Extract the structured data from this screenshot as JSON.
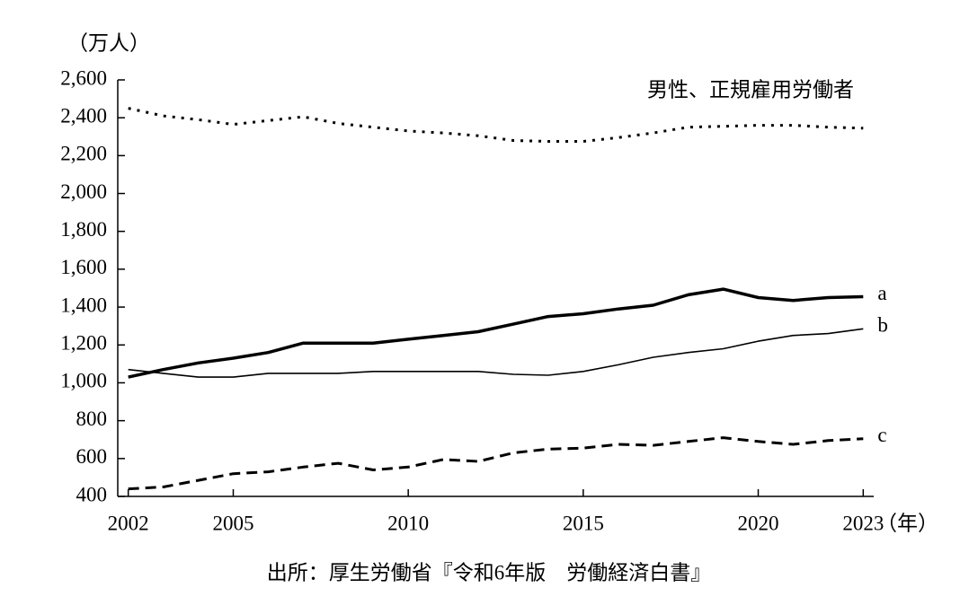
{
  "chart_data": {
    "type": "line",
    "y_unit": "（万人）",
    "x_unit": "（年）",
    "source": "出所：厚生労働省『令和6年版　労働経済白書』",
    "x": [
      2002,
      2003,
      2004,
      2005,
      2006,
      2007,
      2008,
      2009,
      2010,
      2011,
      2012,
      2013,
      2014,
      2015,
      2016,
      2017,
      2018,
      2019,
      2020,
      2021,
      2022,
      2023
    ],
    "series": [
      {
        "name": "男性、正規雇用労働者",
        "color": "#000000",
        "style": "dotted",
        "width": 3,
        "values": [
          2450,
          2410,
          2390,
          2365,
          2385,
          2405,
          2370,
          2350,
          2330,
          2320,
          2305,
          2280,
          2275,
          2275,
          2295,
          2320,
          2350,
          2355,
          2360,
          2360,
          2350,
          2345
        ]
      },
      {
        "name": "a",
        "color": "#000000",
        "style": "solid",
        "width": 3.5,
        "values": [
          1030,
          1070,
          1105,
          1130,
          1160,
          1210,
          1210,
          1210,
          1230,
          1250,
          1270,
          1310,
          1350,
          1365,
          1390,
          1410,
          1465,
          1495,
          1450,
          1435,
          1450,
          1455
        ]
      },
      {
        "name": "b",
        "color": "#000000",
        "style": "solid",
        "width": 1.6,
        "values": [
          1070,
          1050,
          1030,
          1030,
          1050,
          1050,
          1050,
          1060,
          1060,
          1060,
          1060,
          1045,
          1040,
          1060,
          1095,
          1135,
          1160,
          1180,
          1220,
          1250,
          1260,
          1285
        ]
      },
      {
        "name": "c",
        "color": "#000000",
        "style": "dashed",
        "width": 3,
        "values": [
          440,
          450,
          485,
          520,
          530,
          555,
          575,
          540,
          555,
          595,
          585,
          630,
          650,
          655,
          675,
          670,
          690,
          710,
          690,
          675,
          695,
          705
        ]
      }
    ],
    "xlim": [
      2001.7,
      2023.3
    ],
    "xticks": [
      2002,
      2005,
      2010,
      2015,
      2020,
      2023
    ],
    "ylim": [
      400,
      2600
    ],
    "yticks": [
      400,
      600,
      800,
      {
        "value": 1000,
        "label": "1,000"
      },
      {
        "value": 1200,
        "label": "1,200"
      },
      {
        "value": 1400,
        "label": "1,400"
      },
      {
        "value": 1600,
        "label": "1,600"
      },
      {
        "value": 1800,
        "label": "1,800"
      },
      {
        "value": 2000,
        "label": "2,000"
      },
      {
        "value": 2200,
        "label": "2,200"
      },
      {
        "value": 2400,
        "label": "2,400"
      },
      {
        "value": 2600,
        "label": "2,600"
      }
    ],
    "grid": false
  }
}
